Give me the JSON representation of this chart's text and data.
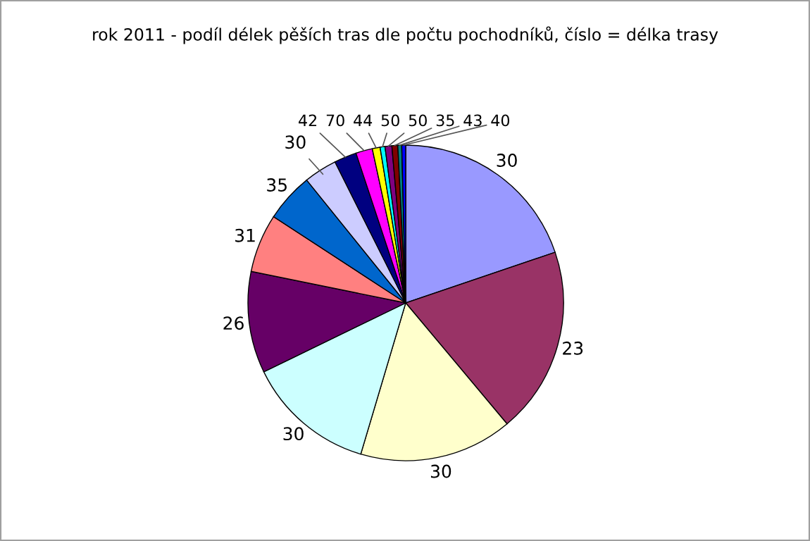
{
  "chart_data": {
    "type": "pie",
    "title": "rok 2011 - podíl délek pěších tras dle počtu pochodníků, číslo = délka trasy",
    "categories": [
      "30",
      "23",
      "30",
      "30",
      "26",
      "31",
      "35",
      "30",
      "42",
      "70",
      "44",
      "50",
      "50",
      "35",
      "43",
      "40"
    ],
    "values": [
      19.8,
      19.1,
      15.7,
      13.2,
      10.4,
      6.0,
      5.0,
      3.4,
      2.3,
      1.7,
      0.8,
      0.5,
      0.7,
      0.6,
      0.4,
      0.4
    ],
    "colors": [
      "#9999ff",
      "#993366",
      "#ffffcc",
      "#ccffff",
      "#660066",
      "#ff8080",
      "#0066cc",
      "#ccccff",
      "#000080",
      "#ff00ff",
      "#ffff00",
      "#00ffff",
      "#800080",
      "#800000",
      "#008080",
      "#0000ff"
    ],
    "legend": false
  }
}
